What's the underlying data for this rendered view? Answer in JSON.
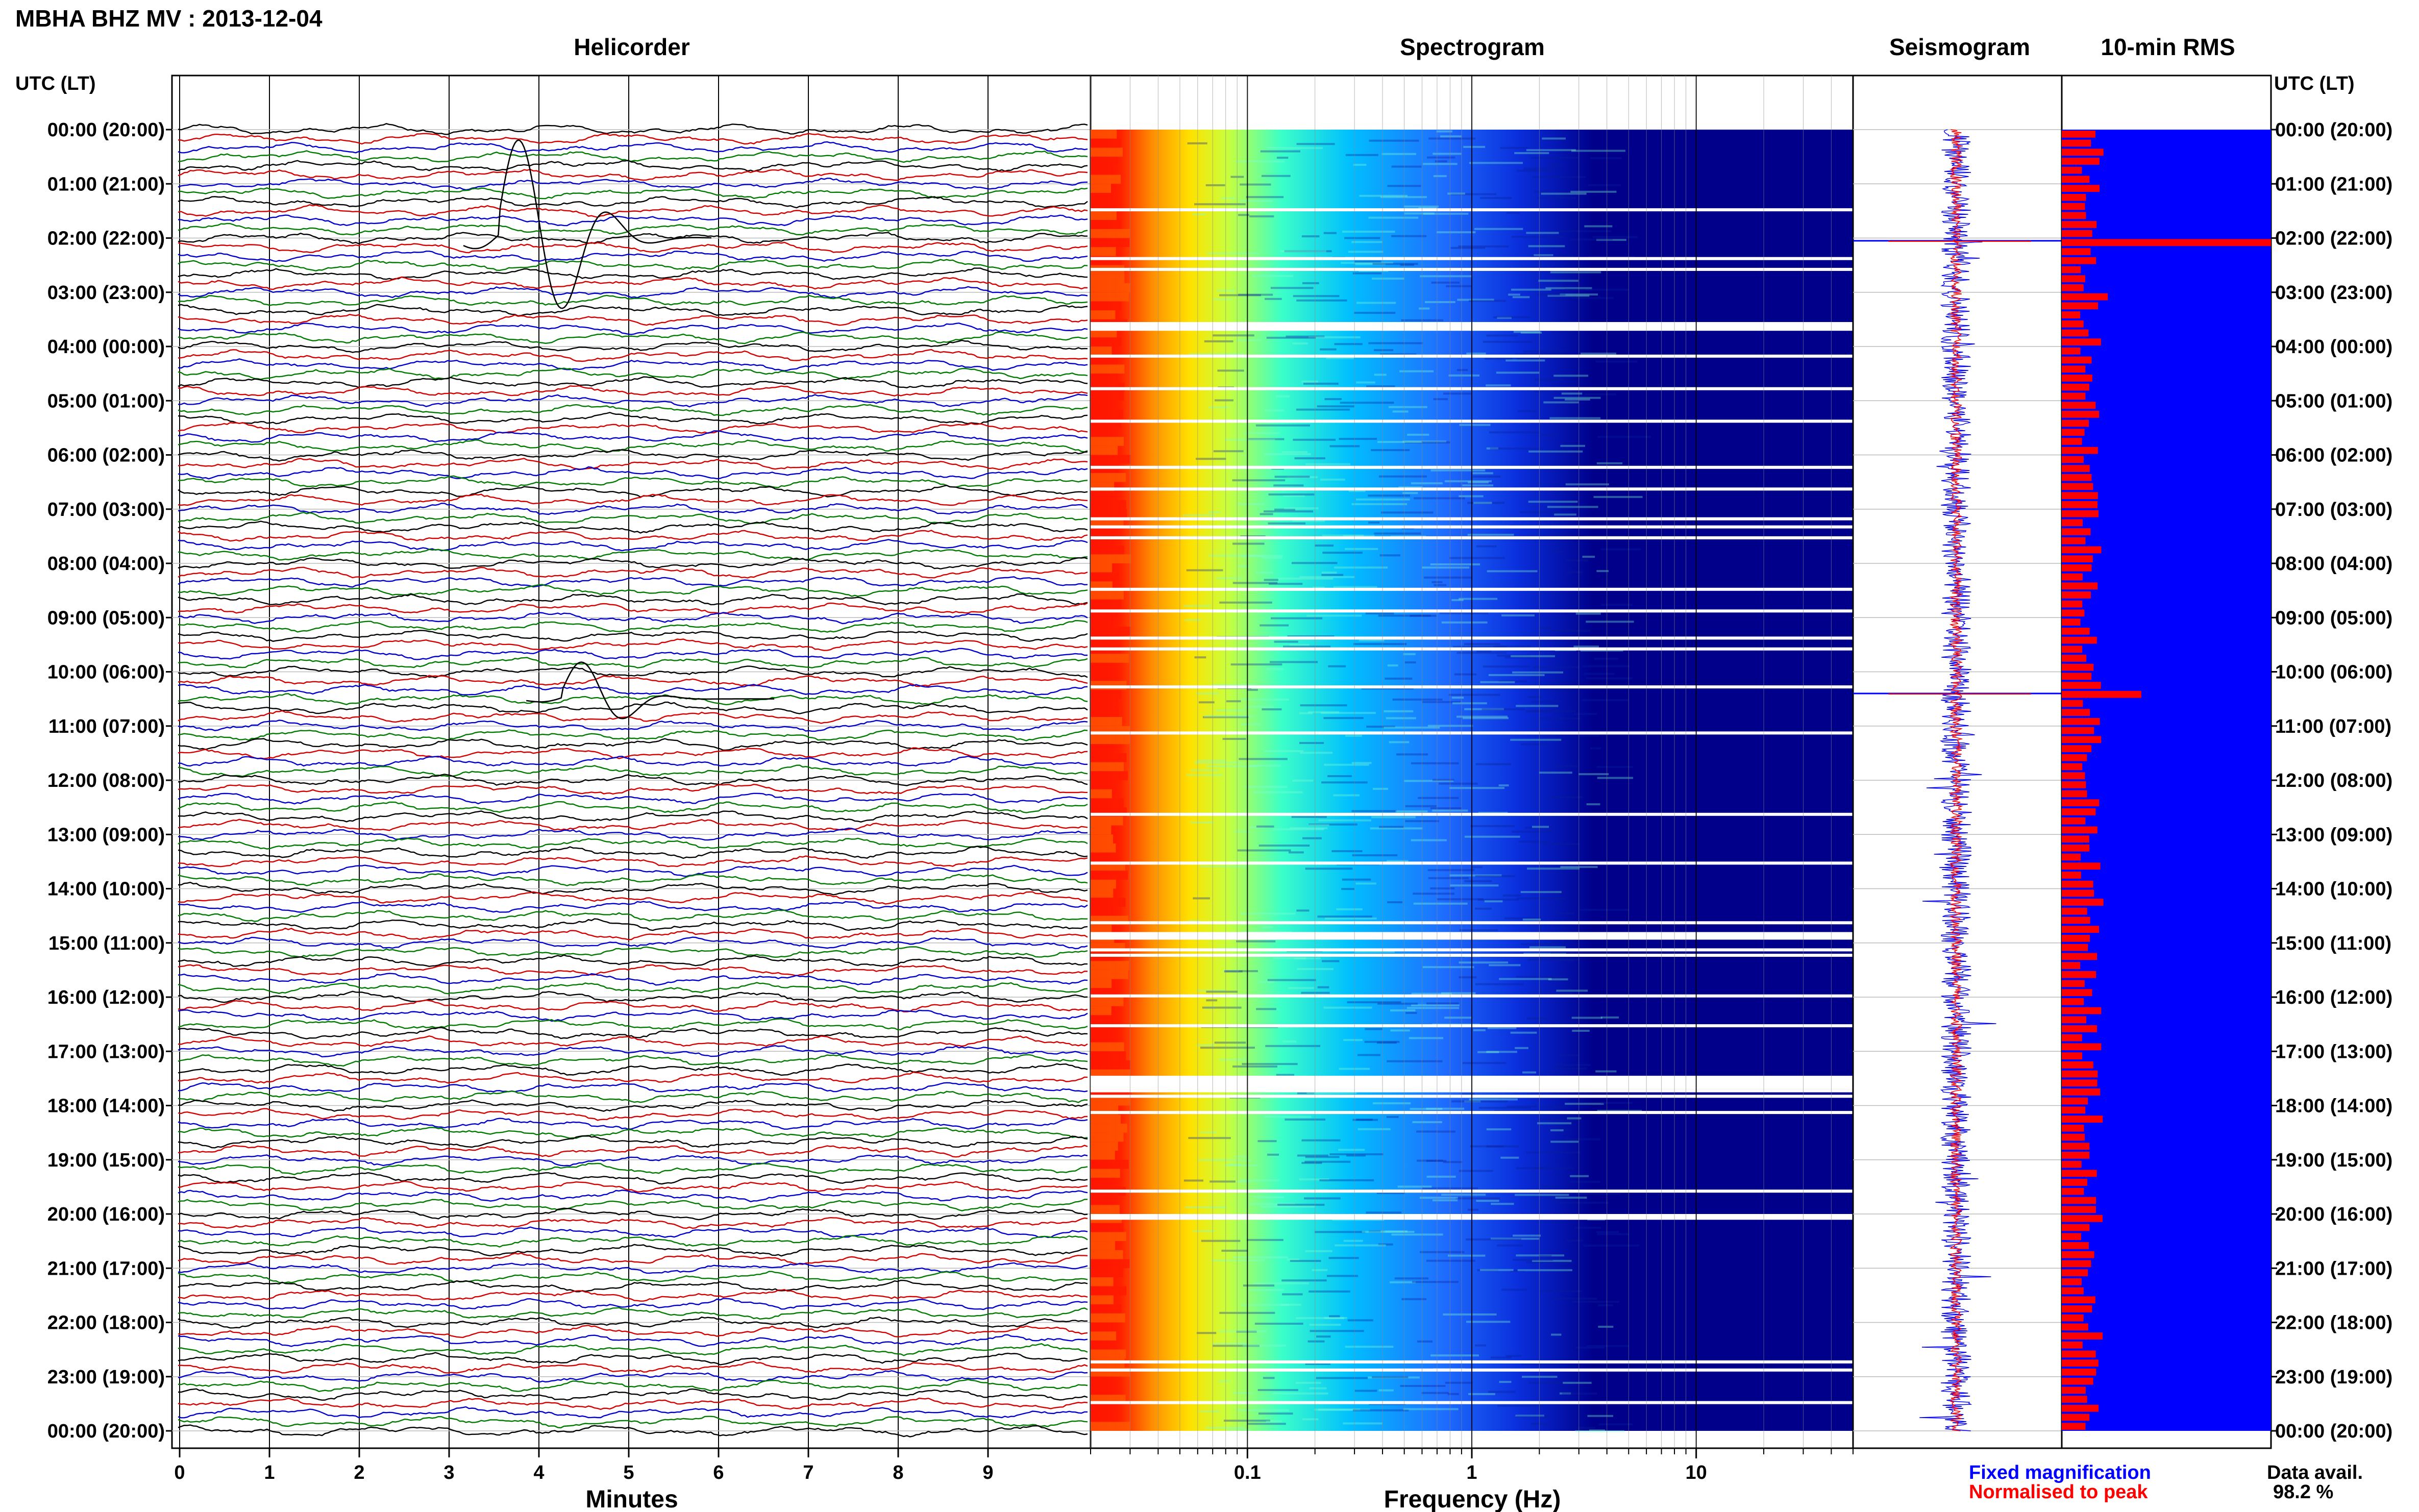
{
  "header": {
    "title": "MBHA BHZ MV : 2013-12-04",
    "left_axis_title": "UTC (LT)",
    "right_axis_title": "UTC (LT)"
  },
  "panels": {
    "helicorder": "Helicorder",
    "spectrogram": "Spectrogram",
    "seismogram": "Seismogram",
    "rms": "10-min RMS"
  },
  "time_labels": [
    "00:00 (20:00)",
    "01:00 (21:00)",
    "02:00 (22:00)",
    "03:00 (23:00)",
    "04:00 (00:00)",
    "05:00 (01:00)",
    "06:00 (02:00)",
    "07:00 (03:00)",
    "08:00 (04:00)",
    "09:00 (05:00)",
    "10:00 (06:00)",
    "11:00 (07:00)",
    "12:00 (08:00)",
    "13:00 (09:00)",
    "14:00 (10:00)",
    "15:00 (11:00)",
    "16:00 (12:00)",
    "17:00 (13:00)",
    "18:00 (14:00)",
    "19:00 (15:00)",
    "20:00 (16:00)",
    "21:00 (17:00)",
    "22:00 (18:00)",
    "23:00 (19:00)",
    "00:00 (20:00)"
  ],
  "footer": {
    "minutes_label": "Minutes",
    "frequency_label": "Frequency (Hz)",
    "legend_fixed": "Fixed magnification",
    "legend_normalised": "Normalised to peak",
    "data_avail_label": "Data avail.",
    "data_avail_value": "98.2 %"
  },
  "colors": {
    "helicorder_traces": [
      "#000000",
      "#d40000",
      "#0000cc",
      "#007a00"
    ],
    "spectrogram_background": "#00008b",
    "fixed_magnification": "#0000ff",
    "normalised_to_peak": "#ff0000",
    "gap": "#ffffff"
  },
  "chart_data": [
    {
      "type": "line",
      "name": "Helicorder",
      "xlabel": "Minutes",
      "x_ticks": [
        "0",
        "1",
        "2",
        "3",
        "4",
        "5",
        "6",
        "7",
        "8",
        "9"
      ],
      "xlim": [
        0,
        10
      ],
      "y_range_hours_utc": [
        0,
        24
      ],
      "lines_per_hour": 6,
      "trace_color_cycle": [
        "black",
        "red",
        "blue",
        "green"
      ],
      "events": [
        {
          "hour_utc": 2.0,
          "minute": 4.0,
          "relative_amplitude": 8
        },
        {
          "hour_utc": 10.5,
          "minute": 4.7,
          "relative_amplitude": 3
        }
      ]
    },
    {
      "type": "heatmap",
      "name": "Spectrogram",
      "xlabel": "Frequency (Hz)",
      "x_scale": "log",
      "x_ticks": [
        "0.1",
        "1",
        "10"
      ],
      "xlim": [
        0.02,
        50
      ],
      "y_range_hours_utc": [
        0,
        24
      ],
      "colormap": "jet",
      "gap_hours_utc": [
        1.45,
        2.35,
        2.55,
        3.55,
        3.6,
        4.15,
        4.75,
        5.35,
        6.2,
        6.6,
        7.15,
        7.3,
        7.5,
        8.45,
        8.85,
        9.35,
        9.55,
        10.25,
        11.1,
        12.6,
        13.5,
        14.6,
        14.8,
        15.1,
        15.2,
        15.95,
        16.5,
        17.7,
        17.8,
        18.1,
        19.55,
        20.0,
        20.05,
        22.7,
        22.85,
        23.45
      ]
    },
    {
      "type": "line",
      "name": "Seismogram",
      "y_range_hours_utc": [
        0,
        24
      ],
      "series": [
        {
          "name": "Fixed magnification",
          "relative_amplitude": 1.0
        },
        {
          "name": "Normalised to peak",
          "relative_amplitude": 0.3
        }
      ],
      "spikes_hours_utc": [
        2.05,
        10.4
      ]
    },
    {
      "type": "bar",
      "name": "10-min RMS",
      "y_range_hours_utc": [
        0,
        24
      ],
      "bars_per_hour": 6,
      "series": [
        {
          "name": "Fixed magnification",
          "relative_value": 1.0
        },
        {
          "name": "Normalised to peak",
          "typical_relative_value": 0.16,
          "peaks": [
            {
              "hour_utc": 2.05,
              "relative_value": 1.0
            },
            {
              "hour_utc": 10.4,
              "relative_value": 0.38
            },
            {
              "hour_utc": 3.05,
              "relative_value": 0.22
            }
          ]
        }
      ]
    }
  ]
}
